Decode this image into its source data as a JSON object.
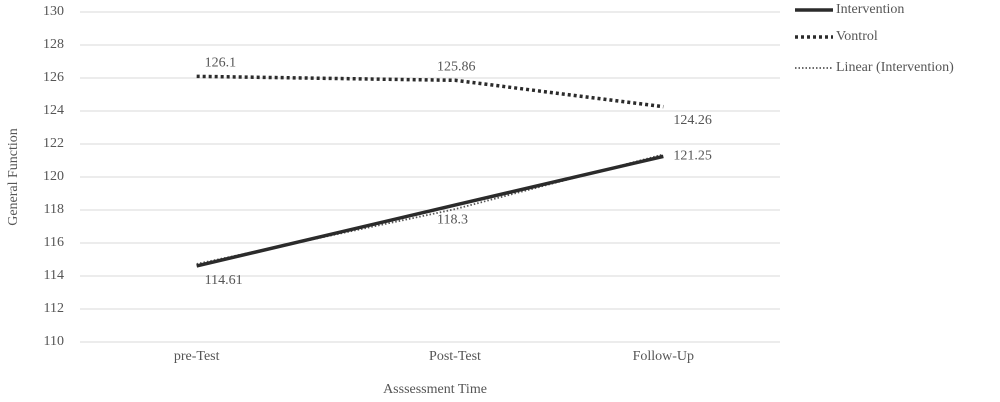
{
  "chart_data": {
    "type": "line",
    "xlabel": "Asssessment Time",
    "ylabel": "General Function",
    "categories": [
      "pre-Test",
      "Post-Test",
      "Follow-Up"
    ],
    "series": [
      {
        "name": "Intervention",
        "color": "#2b2b2b",
        "style": "solid",
        "labels": true,
        "values": [
          114.61,
          118.3,
          121.25
        ]
      },
      {
        "name": "Vontrol",
        "color": "#2b2b2b",
        "style": "dotted",
        "labels": true,
        "values": [
          126.1,
          125.86,
          124.26
        ]
      },
      {
        "name": "Linear (Intervention)",
        "color": "#555555",
        "style": "fine-dotted",
        "labels": false,
        "values": [
          114.73,
          118.05,
          121.37
        ]
      }
    ],
    "ylim": [
      110,
      130
    ],
    "yticks": [
      110,
      112,
      114,
      116,
      118,
      120,
      122,
      124,
      126,
      128,
      130
    ],
    "grid": true,
    "legend": "top-right"
  }
}
